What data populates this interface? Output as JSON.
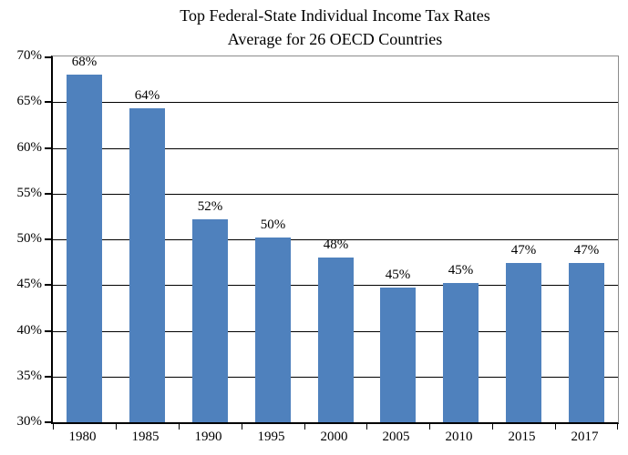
{
  "chart_data": {
    "type": "bar",
    "title": "Top Federal-State Individual Income Tax Rates",
    "subtitle": "Average for 26 OECD Countries",
    "categories": [
      "1980",
      "1985",
      "1990",
      "1995",
      "2000",
      "2005",
      "2010",
      "2015",
      "2017"
    ],
    "values": [
      68.0,
      64.3,
      52.2,
      50.2,
      48.0,
      44.7,
      45.2,
      47.4,
      47.4
    ],
    "value_labels": [
      "68%",
      "64%",
      "52%",
      "50%",
      "48%",
      "45%",
      "45%",
      "47%",
      "47%"
    ],
    "xlabel": "",
    "ylabel": "",
    "ylim": [
      30,
      70
    ],
    "ytick_step": 5,
    "ytick_labels": [
      "30%",
      "35%",
      "40%",
      "45%",
      "50%",
      "55%",
      "60%",
      "65%",
      "70%"
    ],
    "grid": "horizontal",
    "legend_position": "none",
    "bar_color": "#4F81BD",
    "gridline_color": "#000000",
    "axis_color": "#000000",
    "plot_border_color": "#8C8C8C",
    "background_color": "#FFFFFF",
    "text_color": "#000000"
  }
}
